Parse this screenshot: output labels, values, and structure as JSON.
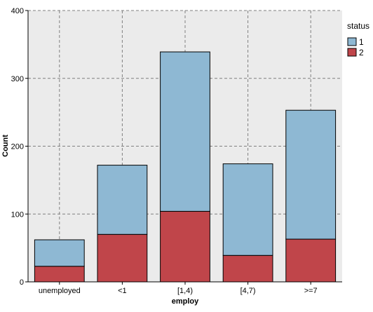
{
  "chart_data": {
    "type": "bar",
    "stacked": true,
    "categories": [
      "unemployed",
      "<1",
      "[1,4)",
      "[4,7)",
      ">=7"
    ],
    "series": [
      {
        "name": "2",
        "values": [
          23,
          70,
          104,
          39,
          63
        ],
        "color": "#c0454a"
      },
      {
        "name": "1",
        "values": [
          39,
          102,
          235,
          135,
          190
        ],
        "color": "#8eb8d3"
      }
    ],
    "xlabel": "employ",
    "ylabel": "Count",
    "ylim": [
      0,
      400
    ],
    "yticks": [
      0,
      100,
      200,
      300,
      400
    ],
    "grid": true,
    "legend": {
      "title": "status",
      "placement": "top-right",
      "entries": [
        {
          "label": "1",
          "color": "#8eb8d3"
        },
        {
          "label": "2",
          "color": "#c0454a"
        }
      ]
    },
    "plot_background": "#ebebeb"
  }
}
